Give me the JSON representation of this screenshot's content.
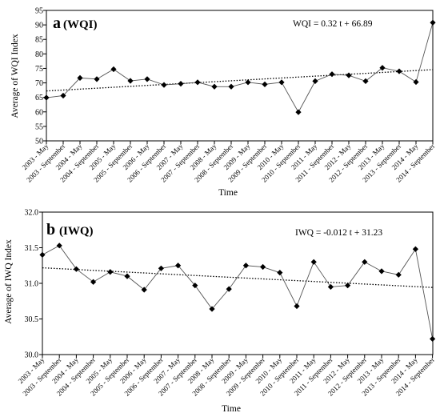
{
  "chart_data": [
    {
      "type": "line",
      "panel_letter": "a",
      "panel_name": "(WQI)",
      "equation": "WQI = 0.32 t + 66.89",
      "xlabel": "Time",
      "ylabel": "Average of WQI  Index",
      "ylim": [
        50,
        95
      ],
      "yticks": [
        "50",
        "55",
        "60",
        "65",
        "70",
        "75",
        "80",
        "85",
        "90",
        "95"
      ],
      "categories": [
        "2003 - May",
        "2003 - September",
        "2004 - May",
        "2004 - September",
        "2005 - May",
        "2005 - September",
        "2006 - May",
        "2006 - September",
        "2007 - May",
        "2007 - September",
        "2008 - May",
        "2008 - September",
        "2009 - May",
        "2009 - September",
        "2010 - May",
        "2010 - September",
        "2011 - May",
        "2011 - September",
        "2012 - May",
        "2012 - September",
        "2013 - May",
        "2013 - September",
        "2014 - May",
        "2014 - September"
      ],
      "values": [
        64.9,
        65.6,
        71.7,
        71.3,
        74.7,
        70.7,
        71.3,
        69.3,
        69.7,
        70.2,
        68.7,
        68.7,
        70.2,
        69.5,
        70.2,
        59.9,
        70.6,
        73.0,
        72.6,
        70.6,
        75.2,
        74.0,
        70.3,
        90.8
      ],
      "trend": {
        "slope": 0.32,
        "intercept": 66.89
      },
      "grid": false,
      "legend": "none"
    },
    {
      "type": "line",
      "panel_letter": "b",
      "panel_name": "(IWQ)",
      "equation": "IWQ = -0.012 t + 31.23",
      "xlabel": "Time",
      "ylabel": "Average of IWQ  Index",
      "ylim": [
        30.0,
        32.0
      ],
      "yticks": [
        "30.0",
        "30.5",
        "31.0",
        "31.5",
        "32.0"
      ],
      "categories": [
        "2003 - May",
        "2003 - September",
        "2004 - May",
        "2004 - September",
        "2005 - May",
        "2005 - September",
        "2006 - May",
        "2006 - September",
        "2007 - May",
        "2007 - September",
        "2008 - May",
        "2008 - September",
        "2009 - May",
        "2009 - September",
        "2010 - May",
        "2010 - September",
        "2011 - May",
        "2011 - September",
        "2012 - May",
        "2012 - September",
        "2013 - May",
        "2013 - September",
        "2014 - May",
        "2014 - September"
      ],
      "values": [
        31.4,
        31.53,
        31.2,
        31.02,
        31.16,
        31.1,
        30.91,
        31.21,
        31.25,
        30.97,
        30.64,
        30.92,
        31.25,
        31.23,
        31.15,
        30.68,
        31.3,
        30.95,
        30.97,
        31.3,
        31.17,
        31.12,
        31.48,
        30.22
      ],
      "trend": {
        "slope": -0.012,
        "intercept": 31.23
      },
      "grid": false,
      "legend": "none"
    }
  ]
}
